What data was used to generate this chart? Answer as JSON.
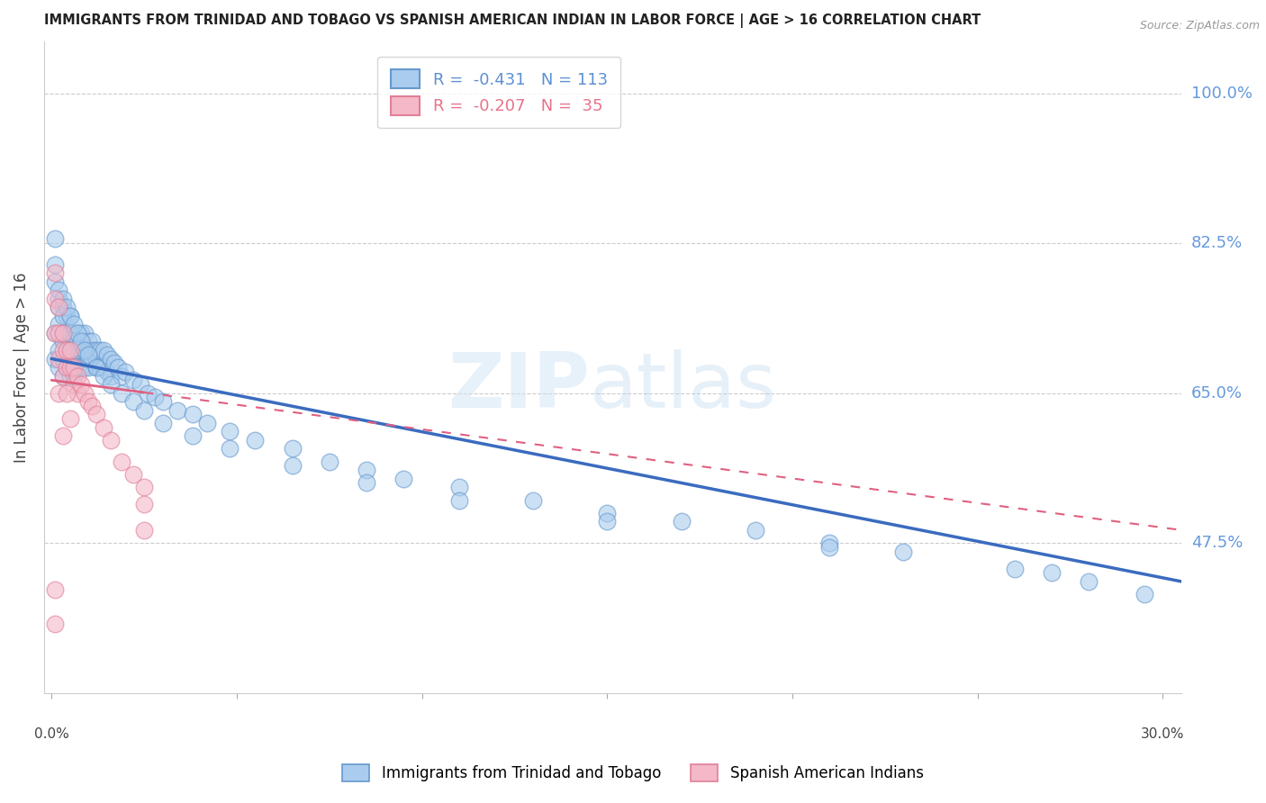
{
  "title": "IMMIGRANTS FROM TRINIDAD AND TOBAGO VS SPANISH AMERICAN INDIAN IN LABOR FORCE | AGE > 16 CORRELATION CHART",
  "source": "Source: ZipAtlas.com",
  "ylabel": "In Labor Force | Age > 16",
  "ytick_labels": [
    "100.0%",
    "82.5%",
    "65.0%",
    "47.5%"
  ],
  "ytick_values": [
    1.0,
    0.825,
    0.65,
    0.475
  ],
  "ylim": [
    0.3,
    1.06
  ],
  "xlim": [
    -0.002,
    0.305
  ],
  "legend_entries": [
    {
      "label": "R =  -0.431   N = 113",
      "color": "#5b8fd4"
    },
    {
      "label": "R =  -0.207   N =  35",
      "color": "#e8728a"
    }
  ],
  "footer_labels": [
    "Immigrants from Trinidad and Tobago",
    "Spanish American Indians"
  ],
  "footer_colors": [
    "#aaccee",
    "#f4b8c8"
  ],
  "watermark_zip": "ZIP",
  "watermark_atlas": "atlas",
  "blue_scatter_x": [
    0.001,
    0.001,
    0.002,
    0.002,
    0.002,
    0.002,
    0.003,
    0.003,
    0.003,
    0.003,
    0.003,
    0.004,
    0.004,
    0.004,
    0.004,
    0.005,
    0.005,
    0.005,
    0.005,
    0.005,
    0.005,
    0.006,
    0.006,
    0.006,
    0.006,
    0.006,
    0.007,
    0.007,
    0.007,
    0.007,
    0.008,
    0.008,
    0.008,
    0.008,
    0.009,
    0.009,
    0.009,
    0.01,
    0.01,
    0.01,
    0.01,
    0.011,
    0.011,
    0.011,
    0.012,
    0.012,
    0.012,
    0.013,
    0.013,
    0.014,
    0.014,
    0.015,
    0.015,
    0.016,
    0.016,
    0.017,
    0.018,
    0.019,
    0.02,
    0.022,
    0.024,
    0.026,
    0.028,
    0.03,
    0.034,
    0.038,
    0.042,
    0.048,
    0.055,
    0.065,
    0.075,
    0.085,
    0.095,
    0.11,
    0.13,
    0.15,
    0.17,
    0.19,
    0.21,
    0.23,
    0.26,
    0.28,
    0.001,
    0.001,
    0.001,
    0.002,
    0.002,
    0.003,
    0.003,
    0.004,
    0.005,
    0.005,
    0.006,
    0.007,
    0.008,
    0.009,
    0.01,
    0.012,
    0.014,
    0.016,
    0.019,
    0.022,
    0.025,
    0.03,
    0.038,
    0.048,
    0.065,
    0.085,
    0.11,
    0.15,
    0.21,
    0.27,
    0.295
  ],
  "blue_scatter_y": [
    0.69,
    0.72,
    0.7,
    0.68,
    0.73,
    0.76,
    0.71,
    0.69,
    0.67,
    0.72,
    0.75,
    0.7,
    0.68,
    0.72,
    0.74,
    0.71,
    0.69,
    0.72,
    0.7,
    0.67,
    0.74,
    0.71,
    0.69,
    0.72,
    0.7,
    0.67,
    0.7,
    0.68,
    0.72,
    0.71,
    0.7,
    0.68,
    0.72,
    0.71,
    0.7,
    0.68,
    0.72,
    0.71,
    0.69,
    0.7,
    0.68,
    0.71,
    0.69,
    0.7,
    0.7,
    0.68,
    0.69,
    0.7,
    0.68,
    0.7,
    0.68,
    0.695,
    0.675,
    0.69,
    0.67,
    0.685,
    0.68,
    0.67,
    0.675,
    0.665,
    0.66,
    0.65,
    0.645,
    0.64,
    0.63,
    0.625,
    0.615,
    0.605,
    0.595,
    0.585,
    0.57,
    0.56,
    0.55,
    0.54,
    0.525,
    0.51,
    0.5,
    0.49,
    0.475,
    0.465,
    0.445,
    0.43,
    0.83,
    0.8,
    0.78,
    0.77,
    0.75,
    0.76,
    0.74,
    0.75,
    0.74,
    0.72,
    0.73,
    0.72,
    0.71,
    0.7,
    0.695,
    0.68,
    0.67,
    0.66,
    0.65,
    0.64,
    0.63,
    0.615,
    0.6,
    0.585,
    0.565,
    0.545,
    0.525,
    0.5,
    0.47,
    0.44,
    0.415
  ],
  "pink_scatter_x": [
    0.001,
    0.001,
    0.001,
    0.002,
    0.002,
    0.002,
    0.003,
    0.003,
    0.003,
    0.004,
    0.004,
    0.005,
    0.005,
    0.006,
    0.006,
    0.007,
    0.007,
    0.008,
    0.009,
    0.01,
    0.011,
    0.012,
    0.014,
    0.016,
    0.019,
    0.022,
    0.025,
    0.001,
    0.001,
    0.002,
    0.003,
    0.004,
    0.005,
    0.025,
    0.025
  ],
  "pink_scatter_y": [
    0.79,
    0.76,
    0.72,
    0.75,
    0.72,
    0.69,
    0.72,
    0.7,
    0.67,
    0.7,
    0.68,
    0.7,
    0.68,
    0.68,
    0.66,
    0.67,
    0.65,
    0.66,
    0.65,
    0.64,
    0.635,
    0.625,
    0.61,
    0.595,
    0.57,
    0.555,
    0.54,
    0.42,
    0.38,
    0.65,
    0.6,
    0.65,
    0.62,
    0.52,
    0.49
  ],
  "blue_line_x0": 0.0,
  "blue_line_x1": 0.305,
  "blue_line_y0": 0.69,
  "blue_line_y1": 0.43,
  "pink_line_x0": 0.0,
  "pink_line_x1": 0.305,
  "pink_line_y0": 0.665,
  "pink_line_y1": 0.49,
  "blue_color": "#3a6bbf",
  "pink_color": "#e06080",
  "scatter_blue_face": "#aaccee",
  "scatter_blue_edge": "#6699cc",
  "scatter_pink_face": "#f4b8c8",
  "scatter_pink_edge": "#e08098",
  "grid_color": "#cccccc",
  "right_axis_color": "#6699dd",
  "background_color": "#ffffff"
}
